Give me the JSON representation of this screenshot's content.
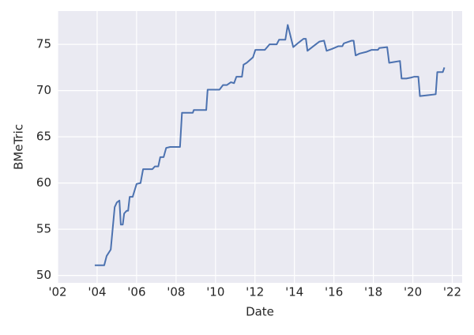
{
  "chart_data": {
    "type": "line",
    "x_label": "Date",
    "y_label": "BMeTric",
    "x": [
      2003.88,
      2004.36,
      2004.48,
      2004.69,
      2004.89,
      2005.0,
      2005.13,
      2005.2,
      2005.3,
      2005.37,
      2005.5,
      2005.57,
      2005.65,
      2005.8,
      2006.0,
      2006.2,
      2006.33,
      2006.8,
      2006.93,
      2007.1,
      2007.2,
      2007.37,
      2007.5,
      2007.7,
      2008.2,
      2008.3,
      2008.85,
      2008.9,
      2009.53,
      2009.6,
      2010.2,
      2010.38,
      2010.58,
      2010.78,
      2010.94,
      2011.06,
      2011.34,
      2011.42,
      2011.58,
      2011.74,
      2011.9,
      2012.02,
      2012.5,
      2012.74,
      2013.1,
      2013.22,
      2013.54,
      2013.66,
      2013.94,
      2014.22,
      2014.46,
      2014.58,
      2014.66,
      2015.02,
      2015.27,
      2015.5,
      2015.63,
      2015.9,
      2016.23,
      2016.43,
      2016.5,
      2016.9,
      2017.0,
      2017.1,
      2017.3,
      2017.67,
      2017.9,
      2018.23,
      2018.3,
      2018.7,
      2018.8,
      2019.07,
      2019.35,
      2019.43,
      2019.67,
      2019.9,
      2020.08,
      2020.28,
      2020.36,
      2020.76,
      2021.16,
      2021.24,
      2021.52,
      2021.6
    ],
    "series": [
      {
        "name": "BMeTric",
        "color": "#4c72b0",
        "values": [
          51.1,
          51.1,
          52.1,
          52.8,
          57.4,
          57.9,
          58.1,
          55.5,
          55.5,
          56.7,
          57.0,
          57.0,
          58.5,
          58.5,
          59.9,
          60.0,
          61.5,
          61.5,
          61.8,
          61.8,
          62.8,
          62.8,
          63.8,
          63.9,
          63.9,
          67.6,
          67.6,
          67.9,
          67.9,
          70.1,
          70.1,
          70.6,
          70.6,
          70.9,
          70.8,
          71.5,
          71.5,
          72.8,
          73.0,
          73.3,
          73.6,
          74.4,
          74.4,
          75.0,
          75.0,
          75.5,
          75.5,
          77.1,
          74.7,
          75.2,
          75.6,
          75.6,
          74.3,
          74.9,
          75.3,
          75.4,
          74.3,
          74.5,
          74.8,
          74.8,
          75.1,
          75.4,
          75.4,
          73.8,
          74.0,
          74.2,
          74.4,
          74.4,
          74.6,
          74.7,
          73.0,
          73.1,
          73.2,
          71.3,
          71.3,
          71.4,
          71.5,
          71.5,
          69.4,
          69.5,
          69.6,
          72.0,
          72.0,
          72.5
        ]
      }
    ],
    "xlim": [
      2002,
      2022.5
    ],
    "ylim": [
      49.2,
      78.6
    ],
    "xticks": [
      {
        "value": 2002,
        "label": "'02"
      },
      {
        "value": 2004,
        "label": "'04"
      },
      {
        "value": 2006,
        "label": "'06"
      },
      {
        "value": 2008,
        "label": "'08"
      },
      {
        "value": 2010,
        "label": "'10"
      },
      {
        "value": 2012,
        "label": "'12"
      },
      {
        "value": 2014,
        "label": "'14"
      },
      {
        "value": 2016,
        "label": "'16"
      },
      {
        "value": 2018,
        "label": "'18"
      },
      {
        "value": 2020,
        "label": "'20"
      },
      {
        "value": 2022,
        "label": "'22"
      }
    ],
    "yticks": [
      50,
      55,
      60,
      65,
      70,
      75
    ],
    "grid": true
  }
}
